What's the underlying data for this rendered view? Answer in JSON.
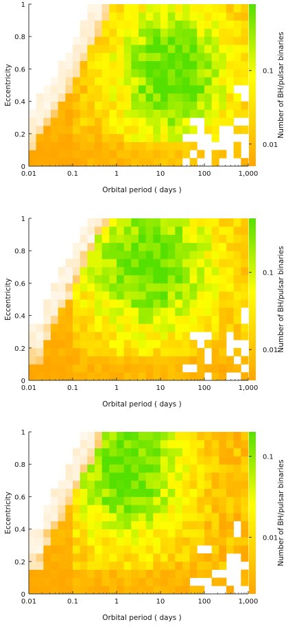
{
  "chart_data": [
    {
      "type": "heatmap",
      "xlabel": "Orbital period ( days )",
      "ylabel": "Eccentricity",
      "colorbar_label": "Number of BH/pulsar binaries",
      "x_scale": "log",
      "xlim": [
        0.01,
        1000
      ],
      "ylim": [
        0,
        1
      ],
      "x_ticks": [
        "0.01",
        "0.1",
        "1",
        "10",
        "100",
        "1,000"
      ],
      "y_ticks": [
        "0",
        "0.2",
        "0.4",
        "0.6",
        "0.8",
        "1"
      ],
      "colorbar_scale": "log",
      "colorbar_range": [
        0.005,
        0.8
      ],
      "colorbar_ticks": [
        "0.01",
        "0.1"
      ],
      "colors": [
        "#ffffff",
        "#ffa600",
        "#ffff00",
        "#55e000"
      ],
      "grid": false
    },
    {
      "type": "heatmap",
      "xlabel": "Orbital period ( days )",
      "ylabel": "Eccentricity",
      "colorbar_label": "Number of BH/pulsar binaries",
      "x_scale": "log",
      "xlim": [
        0.01,
        1000
      ],
      "ylim": [
        0,
        1
      ],
      "x_ticks": [
        "0.01",
        "0.1",
        "1",
        "10",
        "100",
        "1,000"
      ],
      "y_ticks": [
        "0",
        "0.2",
        "0.4",
        "0.6",
        "0.8",
        "1"
      ],
      "colorbar_scale": "log",
      "colorbar_range": [
        0.004,
        0.5
      ],
      "colorbar_ticks": [
        "0.01",
        "0.1"
      ],
      "colors": [
        "#ffffff",
        "#ffa600",
        "#ffff00",
        "#55e000"
      ],
      "grid": false
    },
    {
      "type": "heatmap",
      "xlabel": "Orbital period ( days )",
      "ylabel": "Eccentricity",
      "colorbar_label": "Number of BH/pulsar binaries",
      "x_scale": "log",
      "xlim": [
        0.01,
        1000
      ],
      "ylim": [
        0,
        1
      ],
      "x_ticks": [
        "0.01",
        "0.1",
        "1",
        "10",
        "100",
        "1,000"
      ],
      "y_ticks": [
        "0",
        "0.2",
        "0.4",
        "0.6",
        "0.8",
        "1"
      ],
      "colorbar_scale": "log",
      "colorbar_range": [
        0.002,
        0.2
      ],
      "colorbar_ticks": [
        "0.01",
        "0.1"
      ],
      "colors": [
        "#ffffff",
        "#ffa600",
        "#ffff00",
        "#55e000"
      ],
      "grid": false
    }
  ]
}
